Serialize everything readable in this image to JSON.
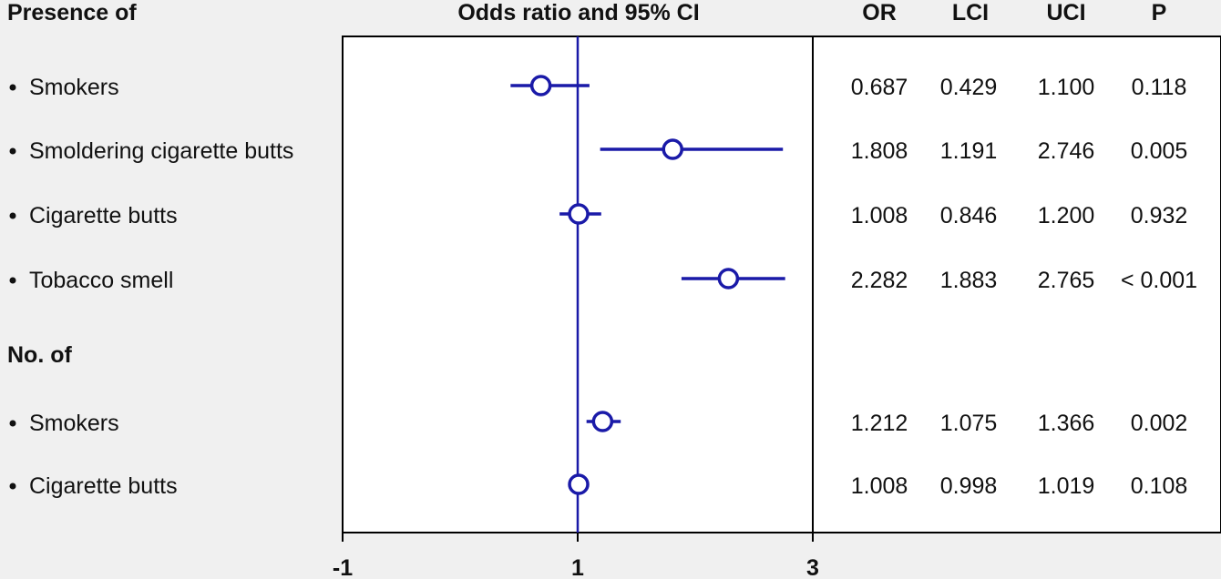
{
  "headers": {
    "left": "Presence of",
    "plot": "Odds ratio and 95% CI",
    "columns": [
      "OR",
      "LCI",
      "UCI",
      "P"
    ]
  },
  "colors": {
    "mark": "#1a1aa8",
    "frame": "#000000",
    "background": "#f0f0f0",
    "panel": "#ffffff"
  },
  "chart_data": {
    "type": "forest",
    "title": "Odds ratio and 95% CI",
    "xlim": [
      -1,
      3
    ],
    "x_ticks": [
      "-1",
      "1",
      "3"
    ],
    "reference_line": 1,
    "grid": false,
    "groups": [
      {
        "label": "Presence of",
        "rows": [
          {
            "label": "Smokers",
            "or": 0.687,
            "lci": 0.429,
            "uci": 1.1,
            "table": [
              "0.687",
              "0.429",
              "1.100",
              "0.118"
            ]
          },
          {
            "label": "Smoldering cigarette butts",
            "or": 1.808,
            "lci": 1.191,
            "uci": 2.746,
            "table": [
              "1.808",
              "1.191",
              "2.746",
              "0.005"
            ]
          },
          {
            "label": "Cigarette butts",
            "or": 1.008,
            "lci": 0.846,
            "uci": 1.2,
            "table": [
              "1.008",
              "0.846",
              "1.200",
              "0.932"
            ]
          },
          {
            "label": "Tobacco smell",
            "or": 2.282,
            "lci": 1.883,
            "uci": 2.765,
            "table": [
              "2.282",
              "1.883",
              "2.765",
              "< 0.001"
            ]
          }
        ]
      },
      {
        "label": "No. of",
        "rows": [
          {
            "label": "Smokers",
            "or": 1.212,
            "lci": 1.075,
            "uci": 1.366,
            "table": [
              "1.212",
              "1.075",
              "1.366",
              "0.002"
            ]
          },
          {
            "label": "Cigarette butts",
            "or": 1.008,
            "lci": 0.998,
            "uci": 1.019,
            "table": [
              "1.008",
              "0.998",
              "1.019",
              "0.108"
            ]
          }
        ]
      }
    ]
  }
}
